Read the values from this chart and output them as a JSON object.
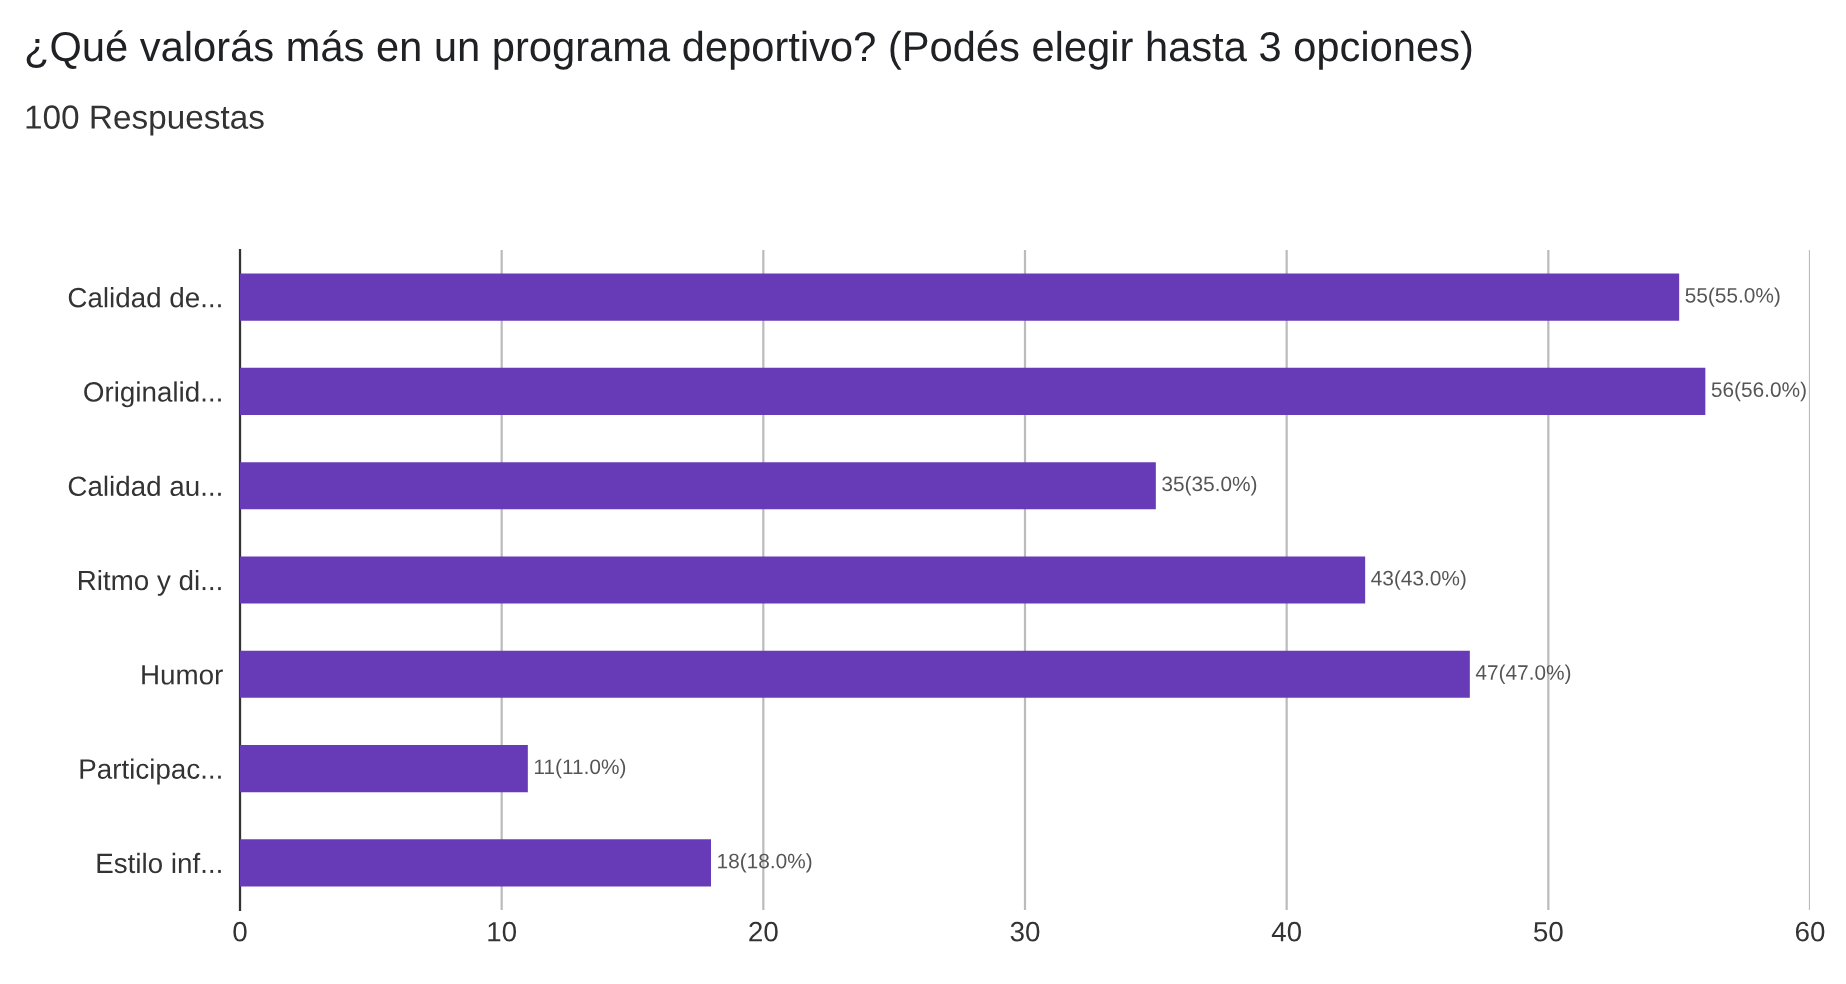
{
  "chart_data": {
    "type": "bar",
    "orientation": "horizontal",
    "title": "¿Qué valorás más en un programa deportivo? (Podés elegir hasta 3 opciones)",
    "subtitle": "100 Respuestas",
    "categories": [
      "Calidad de...",
      "Originalid...",
      "Calidad au...",
      "Ritmo y di...",
      "Humor",
      "Participac...",
      "Estilo inf..."
    ],
    "values": [
      55,
      56,
      35,
      43,
      47,
      11,
      18
    ],
    "value_labels": [
      "55(55.0%)",
      "56(56.0%)",
      "35(35.0%)",
      "43(43.0%)",
      "47(47.0%)",
      "11(11.0%)",
      "18(18.0%)"
    ],
    "color": "#673ab7",
    "xlim": [
      0,
      60
    ],
    "xticks": [
      0,
      10,
      20,
      30,
      40,
      50,
      60
    ],
    "grid": "x",
    "legend": false
  }
}
